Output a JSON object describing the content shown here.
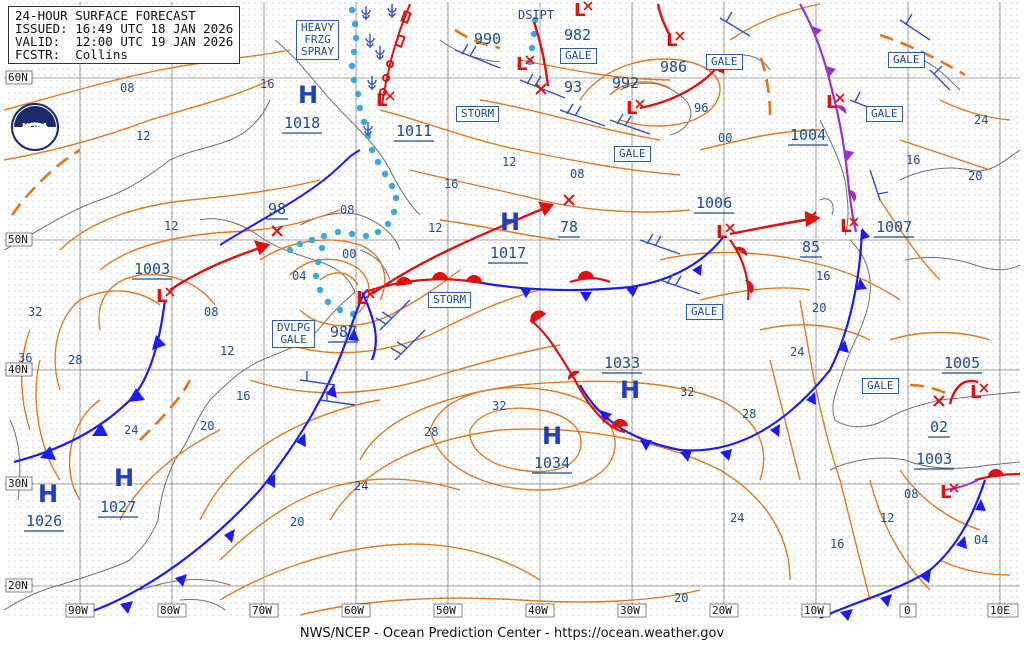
{
  "header": {
    "title": "24-HOUR SURFACE FORECAST",
    "issued": "ISSUED: 16:49 UTC 18 JAN 2026",
    "valid": "VALID:  12:00 UTC 19 JAN 2026",
    "forecaster": "FCSTR:  Collins"
  },
  "footer": "NWS/NCEP - Ocean Prediction Center - https://ocean.weather.gov",
  "logo_text": "NOAA",
  "colors": {
    "isobar": "#e07a1e",
    "high": "#1f3fbf",
    "low": "#e01010",
    "cold_front": "#1a1aff",
    "warm_front": "#e01010",
    "occluded_front": "#9b30d0",
    "ice_line": "#39a9e0",
    "grid": "#8a8a8a",
    "coast": "#6e6e6e",
    "warning_text": "#1a4d8f"
  },
  "lat_labels": [
    "60N",
    "50N",
    "40N",
    "30N",
    "20N"
  ],
  "lon_labels": [
    "90W",
    "80W",
    "70W",
    "60W",
    "50W",
    "40W",
    "30W",
    "20W",
    "10W",
    "0",
    "10E"
  ],
  "highs": [
    {
      "letter": "H",
      "pressure": "1018"
    },
    {
      "letter": "H",
      "pressure": "1017"
    },
    {
      "letter": "H",
      "pressure": "1033"
    },
    {
      "letter": "H",
      "pressure": "1034"
    },
    {
      "letter": "H",
      "pressure": "1027"
    },
    {
      "letter": "H",
      "pressure": "1026"
    }
  ],
  "lows": [
    "1003",
    "987",
    "1006",
    "1004",
    "1007",
    "1005",
    "1003",
    "990",
    "982",
    "93",
    "992",
    "986"
  ],
  "pressure_labels": [
    "98",
    "78",
    "85",
    "02",
    "1011"
  ],
  "isobar_labels": [
    "08",
    "12",
    "16",
    "32",
    "36",
    "28",
    "24",
    "20",
    "16",
    "12",
    "08",
    "04",
    "00",
    "16",
    "12",
    "08",
    "12",
    "32",
    "28",
    "24",
    "20",
    "96",
    "00",
    "16",
    "20",
    "24",
    "28",
    "32",
    "20",
    "24",
    "16",
    "12",
    "08",
    "04",
    "16",
    "20",
    "24",
    "08",
    "12"
  ],
  "warnings": {
    "heavy_frzg_spray": [
      "HEAVY",
      "FRZG",
      "SPRAY"
    ],
    "storm_1": "STORM",
    "storm_2": "STORM",
    "gale": "GALE",
    "dvlpg_gale": [
      "DVLPG",
      "GALE"
    ],
    "dsipt": "DSIPT"
  }
}
